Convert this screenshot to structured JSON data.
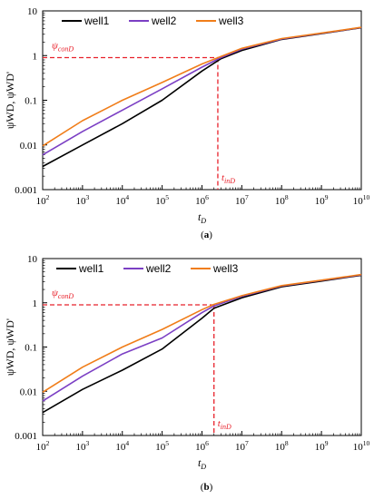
{
  "colors": {
    "well1": "#000000",
    "well2": "#7b3fc4",
    "well3": "#f07d19",
    "annotation": "#e8212b"
  },
  "chart_data": [
    {
      "type": "line",
      "panel_label": "(a)",
      "xlabel": "tD",
      "ylabel": "ψWD, ψWD'",
      "xscale": "log",
      "yscale": "log",
      "xlim": [
        100,
        10000000000
      ],
      "ylim": [
        0.001,
        10
      ],
      "x_tick_labels": [
        "10^2",
        "10^3",
        "10^4",
        "10^5",
        "10^6",
        "10^7",
        "10^8",
        "10^9",
        "10^10"
      ],
      "y_tick_labels": [
        "0.001",
        "0.01",
        "0.1",
        "1",
        "10"
      ],
      "legend_placement": "top-left",
      "series": [
        {
          "name": "well1",
          "x": [
            100,
            1000,
            10000,
            100000,
            1000000,
            3000000,
            10000000,
            100000000,
            1000000000,
            10000000000
          ],
          "y": [
            0.0033,
            0.01,
            0.03,
            0.1,
            0.45,
            0.85,
            1.3,
            2.3,
            3.1,
            4.2
          ]
        },
        {
          "name": "well2",
          "x": [
            100,
            1000,
            10000,
            100000,
            1000000,
            3000000,
            10000000,
            100000000,
            1000000000,
            10000000000
          ],
          "y": [
            0.006,
            0.02,
            0.06,
            0.18,
            0.55,
            0.9,
            1.4,
            2.35,
            3.15,
            4.25
          ]
        },
        {
          "name": "well3",
          "x": [
            100,
            1000,
            10000,
            100000,
            1000000,
            3000000,
            10000000,
            100000000,
            1000000000,
            10000000000
          ],
          "y": [
            0.0095,
            0.035,
            0.1,
            0.25,
            0.65,
            0.95,
            1.45,
            2.4,
            3.2,
            4.3
          ]
        }
      ],
      "annotations": {
        "psi_label": "ψ",
        "psi_sub": "conD",
        "psi_value": 0.9,
        "t_label": "t",
        "t_sub": "inD",
        "t_value": 2500000
      }
    },
    {
      "type": "line",
      "panel_label": "(b)",
      "xlabel": "tD",
      "ylabel": "ψWD, ψWD'",
      "xscale": "log",
      "yscale": "log",
      "xlim": [
        100,
        10000000000
      ],
      "ylim": [
        0.001,
        10
      ],
      "x_tick_labels": [
        "10^2",
        "10^3",
        "10^4",
        "10^5",
        "10^6",
        "10^7",
        "10^8",
        "10^9",
        "10^10"
      ],
      "y_tick_labels": [
        "0.001",
        "0.01",
        "0.1",
        "1",
        "10"
      ],
      "legend_placement": "top",
      "series": [
        {
          "name": "well1",
          "x": [
            100,
            1000,
            10000,
            100000,
            1000000,
            2000000,
            10000000,
            100000000,
            1000000000,
            10000000000
          ],
          "y": [
            0.0033,
            0.011,
            0.03,
            0.09,
            0.45,
            0.75,
            1.3,
            2.3,
            3.1,
            4.2
          ]
        },
        {
          "name": "well2",
          "x": [
            100,
            1000,
            10000,
            100000,
            1000000,
            2000000,
            10000000,
            100000000,
            1000000000,
            10000000000
          ],
          "y": [
            0.006,
            0.022,
            0.07,
            0.16,
            0.6,
            0.85,
            1.4,
            2.4,
            3.2,
            4.3
          ]
        },
        {
          "name": "well3",
          "x": [
            100,
            1000,
            10000,
            100000,
            1000000,
            2000000,
            10000000,
            100000000,
            1000000000,
            10000000000
          ],
          "y": [
            0.0095,
            0.035,
            0.1,
            0.25,
            0.7,
            0.92,
            1.45,
            2.45,
            3.25,
            4.35
          ]
        }
      ],
      "annotations": {
        "psi_label": "ψ",
        "psi_sub": "conD",
        "psi_value": 0.9,
        "t_label": "t",
        "t_sub": "inD",
        "t_value": 2000000
      }
    }
  ]
}
